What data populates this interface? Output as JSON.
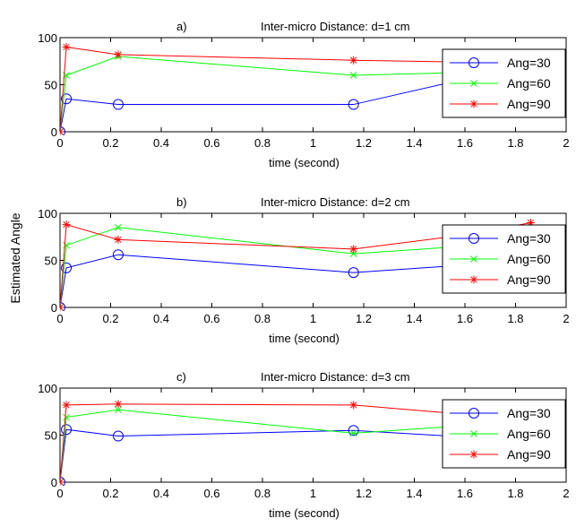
{
  "figure": {
    "ylabel": "Estimated Angle"
  },
  "chart_data": [
    {
      "type": "line",
      "panel_label": "a)",
      "title": "Inter-micro Distance: d=1 cm",
      "xlabel": "time (second)",
      "ylabel": "",
      "xlim": [
        0,
        2
      ],
      "ylim": [
        0,
        100
      ],
      "xticks": [
        "0",
        "0.2",
        "0.4",
        "0.6",
        "0.8",
        "1",
        "1.2",
        "1.4",
        "1.6",
        "1.8",
        "2"
      ],
      "yticks": [
        "0",
        "50",
        "100"
      ],
      "legend_position": "right",
      "series": [
        {
          "name": "Ang=30",
          "color": "#0000ff",
          "marker": "circle",
          "x": [
            0,
            0.025,
            0.23,
            1.16,
            1.6
          ],
          "y": [
            0,
            35,
            29,
            29,
            56
          ]
        },
        {
          "name": "Ang=60",
          "color": "#00ff00",
          "marker": "x",
          "x": [
            0,
            0.025,
            0.23,
            1.16,
            1.6
          ],
          "y": [
            0,
            60,
            80,
            60,
            63
          ]
        },
        {
          "name": "Ang=90",
          "color": "#ff0000",
          "marker": "star",
          "x": [
            0,
            0.025,
            0.23,
            1.16,
            1.6
          ],
          "y": [
            0,
            90,
            82,
            76,
            74
          ]
        }
      ]
    },
    {
      "type": "line",
      "panel_label": "b)",
      "title": "Inter-micro Distance: d=2 cm",
      "xlabel": "time (second)",
      "ylabel": "",
      "xlim": [
        0,
        2
      ],
      "ylim": [
        0,
        100
      ],
      "xticks": [
        "0",
        "0.2",
        "0.4",
        "0.6",
        "0.8",
        "1",
        "1.2",
        "1.4",
        "1.6",
        "1.8",
        "2"
      ],
      "yticks": [
        "0",
        "50",
        "100"
      ],
      "legend_position": "right",
      "series": [
        {
          "name": "Ang=30",
          "color": "#0000ff",
          "marker": "circle",
          "x": [
            0,
            0.025,
            0.23,
            1.16,
            1.6
          ],
          "y": [
            0,
            42,
            56,
            37,
            45
          ]
        },
        {
          "name": "Ang=60",
          "color": "#00ff00",
          "marker": "x",
          "x": [
            0,
            0.025,
            0.23,
            1.16,
            1.6
          ],
          "y": [
            0,
            66,
            85,
            57,
            65
          ]
        },
        {
          "name": "Ang=90",
          "color": "#ff0000",
          "marker": "star",
          "x": [
            0,
            0.025,
            0.23,
            1.16,
            1.6,
            1.86
          ],
          "y": [
            0,
            88,
            72,
            62,
            77,
            90
          ]
        }
      ]
    },
    {
      "type": "line",
      "panel_label": "c)",
      "title": "Inter-micro Distance: d=3 cm",
      "xlabel": "time (second)",
      "ylabel": "",
      "xlim": [
        0,
        2
      ],
      "ylim": [
        0,
        100
      ],
      "xticks": [
        "0",
        "0.2",
        "0.4",
        "0.6",
        "0.8",
        "1",
        "1.2",
        "1.4",
        "1.6",
        "1.8",
        "2"
      ],
      "yticks": [
        "0",
        "50",
        "100"
      ],
      "legend_position": "right",
      "series": [
        {
          "name": "Ang=30",
          "color": "#0000ff",
          "marker": "circle",
          "x": [
            0,
            0.025,
            0.23,
            1.16,
            1.6
          ],
          "y": [
            0,
            56,
            49,
            55,
            48
          ]
        },
        {
          "name": "Ang=60",
          "color": "#00ff00",
          "marker": "x",
          "x": [
            0,
            0.025,
            0.23,
            1.16,
            1.6
          ],
          "y": [
            0,
            69,
            77,
            52,
            60
          ]
        },
        {
          "name": "Ang=90",
          "color": "#ff0000",
          "marker": "star",
          "x": [
            0,
            0.025,
            0.23,
            1.16,
            1.6
          ],
          "y": [
            0,
            82,
            83,
            82,
            72
          ]
        }
      ]
    }
  ]
}
